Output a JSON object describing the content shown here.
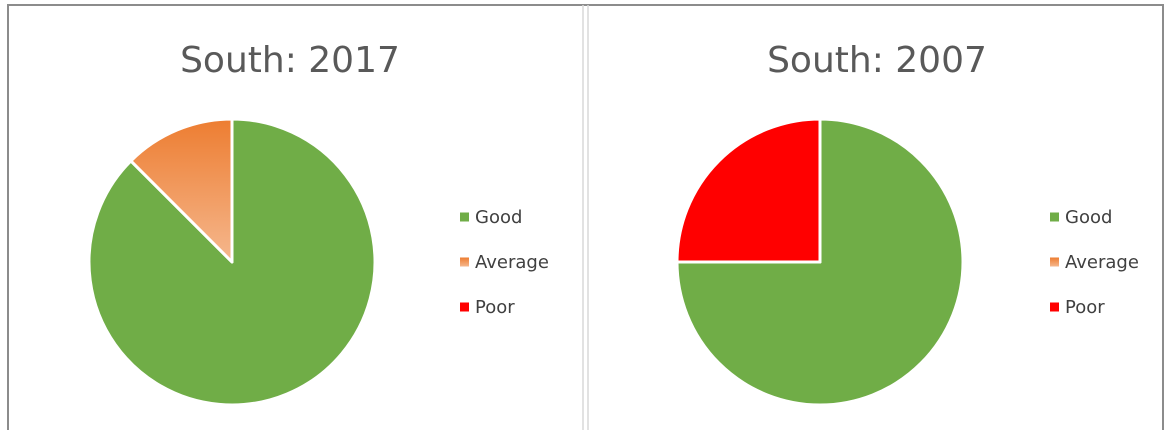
{
  "chart_data": [
    {
      "type": "pie",
      "title": "South: 2017",
      "categories": [
        "Good",
        "Average",
        "Poor"
      ],
      "values": [
        87.5,
        12.5,
        0
      ],
      "colors": [
        "#70ad47",
        "#ed7d31",
        "#ff0000"
      ]
    },
    {
      "type": "pie",
      "title": "South: 2007",
      "categories": [
        "Good",
        "Average",
        "Poor"
      ],
      "values": [
        75,
        0,
        25
      ],
      "colors": [
        "#70ad47",
        "#ed7d31",
        "#ff0000"
      ]
    }
  ]
}
